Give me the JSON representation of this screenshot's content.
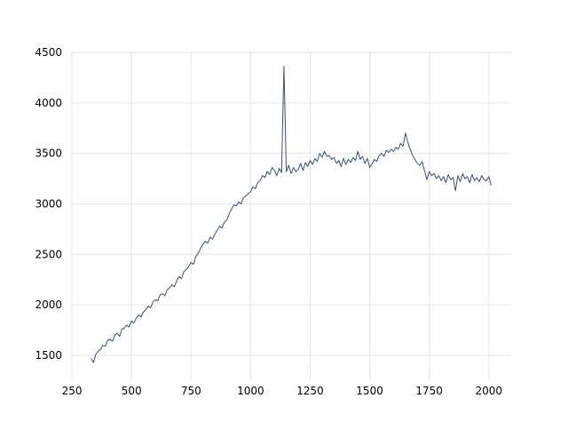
{
  "chart_data": {
    "type": "line",
    "color": "#34506f",
    "grid": true,
    "xlim": [
      246,
      2094
    ],
    "ylim": [
      1263,
      4508
    ],
    "xticks": [
      250,
      500,
      750,
      1000,
      1250,
      1500,
      1750,
      2000
    ],
    "yticks": [
      1500,
      2000,
      2500,
      3000,
      3500,
      4000,
      4500
    ],
    "x": [
      330,
      340,
      350,
      360,
      370,
      380,
      390,
      400,
      410,
      420,
      430,
      440,
      450,
      460,
      470,
      480,
      490,
      500,
      510,
      520,
      530,
      540,
      550,
      560,
      570,
      580,
      590,
      600,
      610,
      620,
      630,
      640,
      650,
      660,
      670,
      680,
      690,
      700,
      710,
      720,
      730,
      740,
      750,
      760,
      770,
      780,
      790,
      800,
      810,
      820,
      830,
      840,
      850,
      860,
      870,
      880,
      890,
      900,
      910,
      920,
      930,
      940,
      950,
      960,
      970,
      980,
      990,
      1000,
      1010,
      1020,
      1030,
      1040,
      1050,
      1060,
      1070,
      1080,
      1090,
      1100,
      1110,
      1120,
      1130,
      1140,
      1150,
      1160,
      1170,
      1180,
      1190,
      1200,
      1210,
      1220,
      1230,
      1240,
      1250,
      1260,
      1270,
      1280,
      1290,
      1300,
      1310,
      1320,
      1330,
      1340,
      1350,
      1360,
      1370,
      1380,
      1390,
      1400,
      1410,
      1420,
      1430,
      1440,
      1450,
      1460,
      1470,
      1480,
      1490,
      1500,
      1510,
      1520,
      1530,
      1540,
      1550,
      1560,
      1570,
      1580,
      1590,
      1600,
      1610,
      1620,
      1630,
      1640,
      1650,
      1660,
      1670,
      1680,
      1690,
      1700,
      1710,
      1720,
      1730,
      1740,
      1750,
      1760,
      1770,
      1780,
      1790,
      1800,
      1810,
      1820,
      1830,
      1840,
      1850,
      1860,
      1870,
      1880,
      1890,
      1900,
      1910,
      1920,
      1930,
      1940,
      1950,
      1960,
      1970,
      1980,
      1990,
      2000,
      2010
    ],
    "values": [
      1470,
      1430,
      1510,
      1540,
      1560,
      1600,
      1590,
      1650,
      1660,
      1640,
      1700,
      1720,
      1690,
      1760,
      1770,
      1800,
      1780,
      1840,
      1820,
      1870,
      1900,
      1880,
      1930,
      1950,
      1990,
      1970,
      2030,
      2050,
      2040,
      2100,
      2110,
      2090,
      2150,
      2170,
      2200,
      2180,
      2240,
      2280,
      2260,
      2330,
      2350,
      2380,
      2420,
      2400,
      2480,
      2510,
      2560,
      2600,
      2630,
      2610,
      2670,
      2650,
      2700,
      2740,
      2780,
      2760,
      2820,
      2840,
      2900,
      2950,
      2990,
      2980,
      3020,
      3000,
      3060,
      3080,
      3100,
      3120,
      3170,
      3150,
      3210,
      3230,
      3280,
      3260,
      3320,
      3290,
      3360,
      3330,
      3280,
      3350,
      3310,
      4360,
      3320,
      3380,
      3300,
      3360,
      3320,
      3340,
      3400,
      3330,
      3410,
      3370,
      3430,
      3390,
      3450,
      3420,
      3500,
      3460,
      3520,
      3470,
      3480,
      3440,
      3460,
      3400,
      3430,
      3370,
      3450,
      3390,
      3440,
      3410,
      3460,
      3430,
      3520,
      3440,
      3470,
      3400,
      3450,
      3360,
      3400,
      3440,
      3420,
      3480,
      3500,
      3470,
      3530,
      3510,
      3540,
      3520,
      3560,
      3540,
      3600,
      3570,
      3700,
      3610,
      3540,
      3480,
      3440,
      3400,
      3380,
      3420,
      3330,
      3240,
      3320,
      3280,
      3300,
      3250,
      3280,
      3230,
      3270,
      3210,
      3290,
      3240,
      3260,
      3130,
      3280,
      3220,
      3300,
      3250,
      3270,
      3210,
      3290,
      3230,
      3260,
      3220,
      3280,
      3240,
      3230,
      3270,
      3180
    ]
  }
}
